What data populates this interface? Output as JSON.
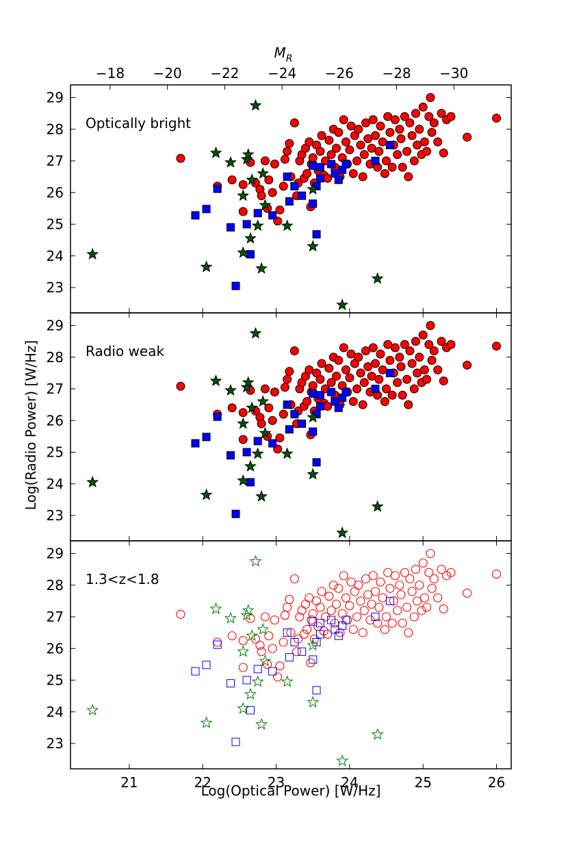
{
  "chart_data": {
    "type": "scatter",
    "xlabel": "Log(Optical Power) [W/Hz]",
    "ylabel": "Log(Radio Power) [W/Hz]",
    "top_axis_label": "M",
    "top_axis_label_sub": "R",
    "xlim": [
      20.2,
      26.2
    ],
    "ylim": [
      22.2,
      29.4
    ],
    "x_ticks": [
      21,
      22,
      23,
      24,
      25,
      26
    ],
    "y_ticks": [
      23,
      24,
      25,
      26,
      27,
      28,
      29
    ],
    "top_ticks": [
      {
        "label": "−18",
        "x": 20.74
      },
      {
        "label": "−20",
        "x": 21.52
      },
      {
        "label": "−22",
        "x": 22.3
      },
      {
        "label": "−24",
        "x": 23.08
      },
      {
        "label": "−26",
        "x": 23.86
      },
      {
        "label": "−28",
        "x": 24.64
      },
      {
        "label": "−30",
        "x": 25.42
      }
    ],
    "panels": [
      {
        "label": "Optically bright",
        "filled": [
          "quasars",
          "seyferts",
          "radio_gals"
        ]
      },
      {
        "label": "Radio weak",
        "filled": [
          "quasars",
          "seyferts",
          "radio_gals"
        ]
      },
      {
        "label": "1.3<z<1.8",
        "filled": []
      }
    ],
    "series_style": {
      "quasars": {
        "marker": "circle",
        "edge": "#ff0000",
        "fill": "#ff0000"
      },
      "seyferts": {
        "marker": "square",
        "edge": "#0000ff",
        "fill": "#0000ff"
      },
      "radio_gals": {
        "marker": "star",
        "edge": "#007700",
        "fill": "#005500"
      }
    },
    "seyferts": [
      [
        21.9,
        25.28
      ],
      [
        22.05,
        25.48
      ],
      [
        22.2,
        26.12
      ],
      [
        22.38,
        24.9
      ],
      [
        22.45,
        23.05
      ],
      [
        22.6,
        25.0
      ],
      [
        22.65,
        24.05
      ],
      [
        22.75,
        25.35
      ],
      [
        22.95,
        25.28
      ],
      [
        23.15,
        26.5
      ],
      [
        23.18,
        25.72
      ],
      [
        23.25,
        26.2
      ],
      [
        23.35,
        25.9
      ],
      [
        23.5,
        25.65
      ],
      [
        23.5,
        26.85
      ],
      [
        23.55,
        26.2
      ],
      [
        23.55,
        24.68
      ],
      [
        23.6,
        26.45
      ],
      [
        23.6,
        26.8
      ],
      [
        23.75,
        26.9
      ],
      [
        23.8,
        26.6
      ],
      [
        23.85,
        26.4
      ],
      [
        23.9,
        26.72
      ],
      [
        23.95,
        26.9
      ],
      [
        24.35,
        27.0
      ],
      [
        24.55,
        27.5
      ]
    ],
    "radio_gals": [
      [
        20.5,
        24.05
      ],
      [
        22.05,
        23.65
      ],
      [
        22.18,
        27.25
      ],
      [
        22.38,
        26.95
      ],
      [
        22.55,
        24.1
      ],
      [
        22.55,
        25.9
      ],
      [
        22.6,
        27.05
      ],
      [
        22.62,
        27.2
      ],
      [
        22.65,
        24.55
      ],
      [
        22.67,
        26.4
      ],
      [
        22.72,
        28.75
      ],
      [
        22.75,
        24.95
      ],
      [
        22.8,
        23.6
      ],
      [
        22.82,
        26.6
      ],
      [
        22.85,
        25.6
      ],
      [
        23.15,
        24.95
      ],
      [
        23.5,
        24.3
      ],
      [
        23.5,
        26.1
      ],
      [
        23.9,
        22.45
      ],
      [
        24.38,
        23.28
      ]
    ],
    "quasars": [
      [
        21.7,
        27.08
      ],
      [
        22.2,
        26.2
      ],
      [
        22.4,
        26.4
      ],
      [
        22.55,
        25.4
      ],
      [
        22.55,
        26.25
      ],
      [
        22.65,
        26.95
      ],
      [
        22.72,
        26.3
      ],
      [
        22.78,
        26.1
      ],
      [
        22.8,
        25.9
      ],
      [
        22.85,
        27.0
      ],
      [
        22.88,
        25.5
      ],
      [
        22.9,
        26.4
      ],
      [
        22.95,
        26.0
      ],
      [
        22.98,
        26.9
      ],
      [
        23.02,
        25.1
      ],
      [
        23.05,
        25.45
      ],
      [
        23.1,
        26.2
      ],
      [
        23.12,
        27.05
      ],
      [
        23.15,
        27.3
      ],
      [
        23.18,
        27.55
      ],
      [
        23.2,
        26.5
      ],
      [
        23.25,
        28.2
      ],
      [
        23.28,
        25.9
      ],
      [
        23.3,
        26.3
      ],
      [
        23.32,
        27.0
      ],
      [
        23.35,
        27.2
      ],
      [
        23.38,
        26.45
      ],
      [
        23.4,
        27.4
      ],
      [
        23.42,
        26.6
      ],
      [
        23.45,
        27.6
      ],
      [
        23.47,
        25.55
      ],
      [
        23.48,
        26.9
      ],
      [
        23.5,
        27.1
      ],
      [
        23.52,
        26.3
      ],
      [
        23.55,
        27.5
      ],
      [
        23.57,
        26.7
      ],
      [
        23.6,
        27.3
      ],
      [
        23.62,
        27.8
      ],
      [
        23.65,
        26.55
      ],
      [
        23.67,
        27.0
      ],
      [
        23.7,
        26.45
      ],
      [
        23.72,
        27.65
      ],
      [
        23.75,
        27.2
      ],
      [
        23.78,
        28.0
      ],
      [
        23.8,
        26.8
      ],
      [
        23.82,
        27.4
      ],
      [
        23.85,
        27.9
      ],
      [
        23.87,
        26.5
      ],
      [
        23.9,
        27.1
      ],
      [
        23.92,
        28.3
      ],
      [
        23.95,
        27.6
      ],
      [
        23.97,
        26.9
      ],
      [
        24.0,
        27.35
      ],
      [
        24.02,
        28.1
      ],
      [
        24.05,
        26.6
      ],
      [
        24.07,
        27.8
      ],
      [
        24.1,
        27.0
      ],
      [
        24.12,
        28.0
      ],
      [
        24.15,
        27.5
      ],
      [
        24.18,
        26.5
      ],
      [
        24.2,
        27.2
      ],
      [
        24.22,
        28.2
      ],
      [
        24.25,
        27.7
      ],
      [
        24.28,
        26.9
      ],
      [
        24.3,
        27.4
      ],
      [
        24.32,
        28.3
      ],
      [
        24.35,
        27.8
      ],
      [
        24.38,
        26.8
      ],
      [
        24.4,
        27.3
      ],
      [
        24.42,
        28.1
      ],
      [
        24.45,
        27.6
      ],
      [
        24.48,
        26.6
      ],
      [
        24.5,
        27.0
      ],
      [
        24.52,
        28.4
      ],
      [
        24.55,
        27.9
      ],
      [
        24.58,
        26.8
      ],
      [
        24.6,
        27.5
      ],
      [
        24.62,
        28.3
      ],
      [
        24.65,
        27.2
      ],
      [
        24.68,
        28.0
      ],
      [
        24.7,
        27.7
      ],
      [
        24.72,
        26.8
      ],
      [
        24.75,
        28.4
      ],
      [
        24.78,
        27.3
      ],
      [
        24.8,
        26.5
      ],
      [
        24.82,
        28.2
      ],
      [
        24.85,
        27.8
      ],
      [
        24.88,
        27.0
      ],
      [
        24.9,
        28.5
      ],
      [
        24.92,
        27.5
      ],
      [
        24.95,
        28.0
      ],
      [
        24.98,
        27.2
      ],
      [
        25.0,
        28.7
      ],
      [
        25.02,
        27.6
      ],
      [
        25.05,
        27.3
      ],
      [
        25.08,
        28.4
      ],
      [
        25.1,
        29.0
      ],
      [
        25.12,
        27.9
      ],
      [
        25.15,
        28.2
      ],
      [
        25.2,
        27.6
      ],
      [
        25.25,
        28.5
      ],
      [
        25.28,
        27.25
      ],
      [
        25.32,
        28.3
      ],
      [
        25.38,
        28.4
      ],
      [
        25.6,
        27.75
      ],
      [
        26.0,
        28.35
      ]
    ]
  }
}
